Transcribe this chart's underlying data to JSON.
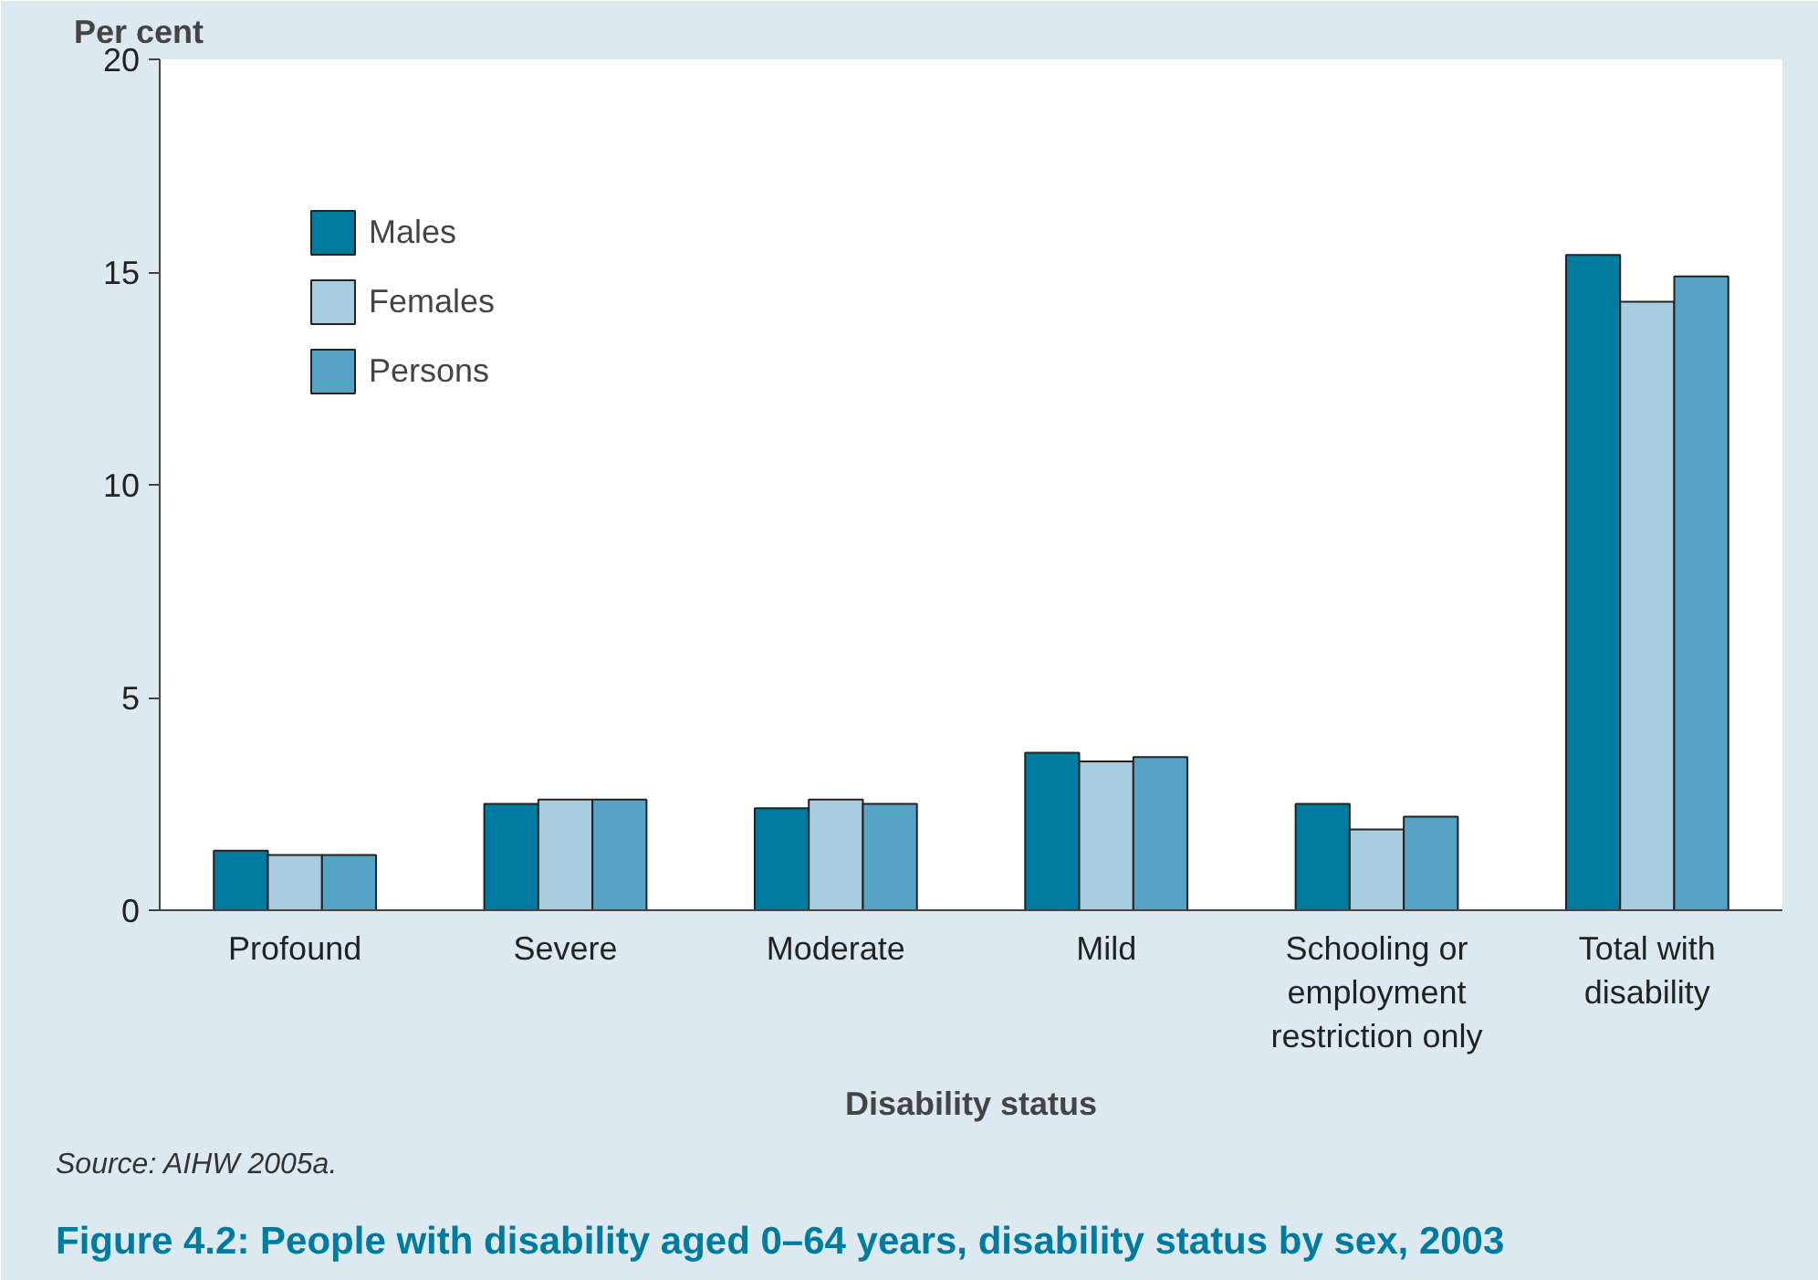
{
  "chart_data": {
    "type": "bar",
    "title": "Figure 4.2: People with disability aged 0–64 years, disability status by sex, 2003",
    "xlabel": "Disability status",
    "ylabel": "Per cent",
    "categories": [
      "Profound",
      "Severe",
      "Moderate",
      "Mild",
      "Schooling or employment restriction only",
      "Total with disability"
    ],
    "series": [
      {
        "name": "Males",
        "color": "#007ba0",
        "values": [
          1.4,
          2.5,
          2.4,
          3.7,
          2.5,
          15.4
        ]
      },
      {
        "name": "Females",
        "color": "#a8cce0",
        "values": [
          1.3,
          2.6,
          2.6,
          3.5,
          1.9,
          14.3
        ]
      },
      {
        "name": "Persons",
        "color": "#56a3c6",
        "values": [
          1.3,
          2.6,
          2.5,
          3.6,
          2.2,
          14.9
        ]
      }
    ],
    "ylim": [
      0,
      20
    ],
    "yticks": [
      0,
      5,
      10,
      15,
      20
    ],
    "grid": false,
    "legend": "top left",
    "annotations": [
      "Source: AIHW 2005a."
    ]
  }
}
